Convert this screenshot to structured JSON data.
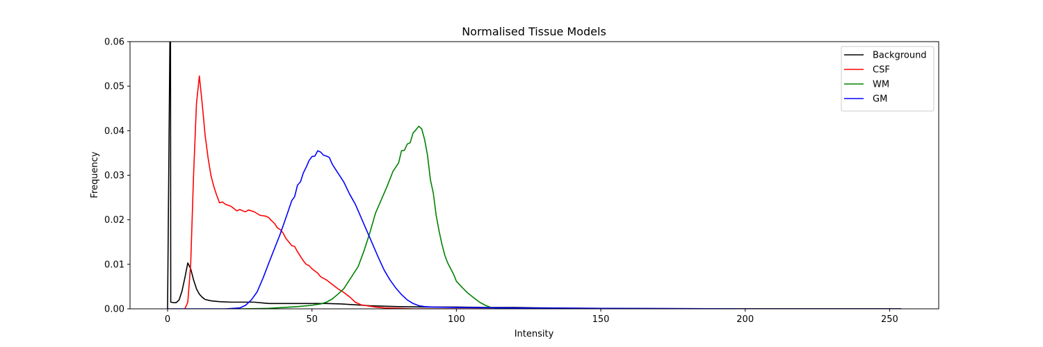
{
  "chart_data": {
    "type": "line",
    "title": "Normalised Tissue Models",
    "xlabel": "Intensity",
    "ylabel": "Frequency",
    "xlim": [
      -13,
      267
    ],
    "ylim": [
      0,
      0.06
    ],
    "xticks": [
      0,
      50,
      100,
      150,
      200,
      250
    ],
    "yticks": [
      0.0,
      0.01,
      0.02,
      0.03,
      0.04,
      0.05,
      0.06
    ],
    "ytick_labels": [
      "0.00",
      "0.01",
      "0.02",
      "0.03",
      "0.04",
      "0.05",
      "0.06"
    ],
    "grid": false,
    "legend_position": "top-right",
    "series": [
      {
        "name": "Background",
        "color": "#000000",
        "points": [
          [
            0,
            0.0
          ],
          [
            1,
            0.075
          ],
          [
            1.1,
            0.0015
          ],
          [
            2,
            0.0014
          ],
          [
            3,
            0.0014
          ],
          [
            4,
            0.002
          ],
          [
            5,
            0.004
          ],
          [
            6,
            0.007
          ],
          [
            7,
            0.0103
          ],
          [
            8,
            0.009
          ],
          [
            9,
            0.0065
          ],
          [
            10,
            0.0045
          ],
          [
            11,
            0.0033
          ],
          [
            12,
            0.0026
          ],
          [
            13,
            0.0021
          ],
          [
            15,
            0.0018
          ],
          [
            18,
            0.0016
          ],
          [
            22,
            0.0015
          ],
          [
            30,
            0.0015
          ],
          [
            35,
            0.0012
          ],
          [
            40,
            0.0012
          ],
          [
            45,
            0.0012
          ],
          [
            50,
            0.0012
          ],
          [
            55,
            0.0012
          ],
          [
            60,
            0.0011
          ],
          [
            65,
            0.0009
          ],
          [
            70,
            0.0007
          ],
          [
            75,
            0.0006
          ],
          [
            80,
            0.0005
          ],
          [
            90,
            0.0004
          ],
          [
            100,
            0.0004
          ],
          [
            110,
            0.0003
          ],
          [
            120,
            0.0003
          ],
          [
            130,
            0.0002
          ],
          [
            140,
            0.00015
          ],
          [
            150,
            0.0001
          ],
          [
            175,
            5e-05
          ],
          [
            200,
            2e-05
          ],
          [
            254,
            0.0
          ]
        ]
      },
      {
        "name": "CSF",
        "color": "#ff0000",
        "points": [
          [
            6,
            0.0
          ],
          [
            7,
            0.0015
          ],
          [
            8,
            0.01
          ],
          [
            9,
            0.03
          ],
          [
            10,
            0.046
          ],
          [
            11,
            0.0523
          ],
          [
            12,
            0.046
          ],
          [
            13,
            0.039
          ],
          [
            14,
            0.034
          ],
          [
            15,
            0.03
          ],
          [
            16,
            0.0275
          ],
          [
            17,
            0.0255
          ],
          [
            18,
            0.0238
          ],
          [
            19,
            0.024
          ],
          [
            20,
            0.0235
          ],
          [
            22,
            0.023
          ],
          [
            23,
            0.0225
          ],
          [
            24,
            0.022
          ],
          [
            25,
            0.0223
          ],
          [
            26,
            0.022
          ],
          [
            27,
            0.0218
          ],
          [
            28,
            0.0222
          ],
          [
            30,
            0.0218
          ],
          [
            32,
            0.021
          ],
          [
            34,
            0.0208
          ],
          [
            35,
            0.0205
          ],
          [
            36,
            0.0198
          ],
          [
            37,
            0.0192
          ],
          [
            38,
            0.0182
          ],
          [
            39,
            0.0178
          ],
          [
            40,
            0.017
          ],
          [
            41,
            0.0158
          ],
          [
            42,
            0.015
          ],
          [
            43,
            0.0142
          ],
          [
            44,
            0.014
          ],
          [
            45,
            0.0128
          ],
          [
            46,
            0.0118
          ],
          [
            47,
            0.0108
          ],
          [
            48,
            0.01
          ],
          [
            49,
            0.0097
          ],
          [
            50,
            0.009
          ],
          [
            52,
            0.008
          ],
          [
            53,
            0.0072
          ],
          [
            55,
            0.0065
          ],
          [
            57,
            0.0055
          ],
          [
            59,
            0.0045
          ],
          [
            61,
            0.0037
          ],
          [
            63,
            0.0027
          ],
          [
            65,
            0.0015
          ],
          [
            67,
            0.0009
          ],
          [
            70,
            0.0006
          ],
          [
            72,
            0.0004
          ],
          [
            75,
            0.0002
          ],
          [
            80,
            0.0001
          ],
          [
            85,
            0.0
          ],
          [
            254,
            0.0
          ]
        ]
      },
      {
        "name": "WM",
        "color": "#008000",
        "points": [
          [
            25,
            0.0
          ],
          [
            35,
            0.0001
          ],
          [
            40,
            0.0003
          ],
          [
            45,
            0.0005
          ],
          [
            50,
            0.0008
          ],
          [
            53,
            0.0011
          ],
          [
            55,
            0.0015
          ],
          [
            57,
            0.0022
          ],
          [
            59,
            0.0033
          ],
          [
            61,
            0.0045
          ],
          [
            62,
            0.0055
          ],
          [
            64,
            0.0075
          ],
          [
            66,
            0.0095
          ],
          [
            68,
            0.013
          ],
          [
            70,
            0.017
          ],
          [
            72,
            0.0215
          ],
          [
            74,
            0.0245
          ],
          [
            76,
            0.0275
          ],
          [
            78,
            0.0308
          ],
          [
            80,
            0.0328
          ],
          [
            81,
            0.0355
          ],
          [
            82,
            0.0356
          ],
          [
            83,
            0.037
          ],
          [
            84,
            0.0373
          ],
          [
            85,
            0.0395
          ],
          [
            86,
            0.0402
          ],
          [
            87,
            0.041
          ],
          [
            88,
            0.0404
          ],
          [
            89,
            0.038
          ],
          [
            90,
            0.0345
          ],
          [
            91,
            0.029
          ],
          [
            92,
            0.026
          ],
          [
            93,
            0.021
          ],
          [
            94,
            0.0175
          ],
          [
            95,
            0.0145
          ],
          [
            96,
            0.012
          ],
          [
            97,
            0.0103
          ],
          [
            99,
            0.0078
          ],
          [
            100,
            0.0062
          ],
          [
            102,
            0.0048
          ],
          [
            104,
            0.0035
          ],
          [
            106,
            0.0025
          ],
          [
            108,
            0.0015
          ],
          [
            110,
            0.0008
          ],
          [
            112,
            0.0003
          ],
          [
            115,
            0.0001
          ],
          [
            130,
            0.0
          ],
          [
            254,
            0.0
          ]
        ]
      },
      {
        "name": "GM",
        "color": "#0000ff",
        "points": [
          [
            0,
            0.0
          ],
          [
            20,
            0.0
          ],
          [
            25,
            0.0002
          ],
          [
            27,
            0.0008
          ],
          [
            29,
            0.002
          ],
          [
            31,
            0.0038
          ],
          [
            33,
            0.0068
          ],
          [
            35,
            0.0102
          ],
          [
            37,
            0.0135
          ],
          [
            39,
            0.0168
          ],
          [
            41,
            0.0205
          ],
          [
            43,
            0.0243
          ],
          [
            44,
            0.0252
          ],
          [
            45,
            0.0278
          ],
          [
            46,
            0.0285
          ],
          [
            47,
            0.0305
          ],
          [
            48,
            0.0318
          ],
          [
            49,
            0.0333
          ],
          [
            50,
            0.0342
          ],
          [
            51,
            0.0343
          ],
          [
            52,
            0.0355
          ],
          [
            53,
            0.0352
          ],
          [
            54,
            0.0345
          ],
          [
            55,
            0.0343
          ],
          [
            56,
            0.034
          ],
          [
            57,
            0.0325
          ],
          [
            58,
            0.0315
          ],
          [
            59,
            0.0305
          ],
          [
            61,
            0.0285
          ],
          [
            63,
            0.0258
          ],
          [
            65,
            0.0235
          ],
          [
            67,
            0.0205
          ],
          [
            69,
            0.0175
          ],
          [
            71,
            0.0145
          ],
          [
            73,
            0.0115
          ],
          [
            75,
            0.0087
          ],
          [
            77,
            0.0065
          ],
          [
            79,
            0.0047
          ],
          [
            81,
            0.0032
          ],
          [
            83,
            0.002
          ],
          [
            85,
            0.0012
          ],
          [
            87,
            0.0007
          ],
          [
            89,
            0.0005
          ],
          [
            92,
            0.0004
          ],
          [
            100,
            0.0003
          ],
          [
            120,
            0.0002
          ],
          [
            150,
            0.0001
          ],
          [
            200,
            0.0
          ],
          [
            254,
            0.0
          ]
        ]
      }
    ]
  }
}
